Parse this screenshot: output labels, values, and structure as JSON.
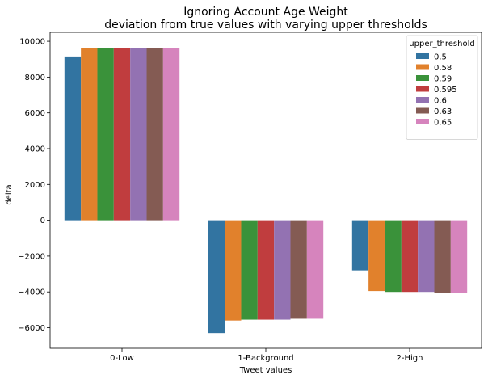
{
  "chart_data": {
    "type": "bar",
    "title": "Ignoring Account Age Weight\ndeviation from true values with varying upper thresholds",
    "title_lines": [
      "Ignoring Account Age Weight",
      "deviation from true values with varying upper thresholds"
    ],
    "xlabel": "Tweet values",
    "ylabel": "delta",
    "categories": [
      "0-Low",
      "1-Background",
      "2-High"
    ],
    "ylim": [
      -7150,
      10500
    ],
    "yticks": [
      -6000,
      -4000,
      -2000,
      0,
      2000,
      4000,
      6000,
      8000,
      10000
    ],
    "grid": false,
    "legend": {
      "title": "upper_threshold",
      "placement": "top-right"
    },
    "series": [
      {
        "name": "0.5",
        "color": "#3274a1",
        "values": [
          9150,
          -6300,
          -2800
        ]
      },
      {
        "name": "0.58",
        "color": "#e1812c",
        "values": [
          9600,
          -5600,
          -3950
        ]
      },
      {
        "name": "0.59",
        "color": "#3a923a",
        "values": [
          9600,
          -5550,
          -4000
        ]
      },
      {
        "name": "0.595",
        "color": "#c03d3e",
        "values": [
          9600,
          -5550,
          -4000
        ]
      },
      {
        "name": "0.6",
        "color": "#9372b2",
        "values": [
          9600,
          -5550,
          -4000
        ]
      },
      {
        "name": "0.63",
        "color": "#845b53",
        "values": [
          9600,
          -5500,
          -4050
        ]
      },
      {
        "name": "0.65",
        "color": "#d684bd",
        "values": [
          9600,
          -5500,
          -4050
        ]
      }
    ]
  }
}
